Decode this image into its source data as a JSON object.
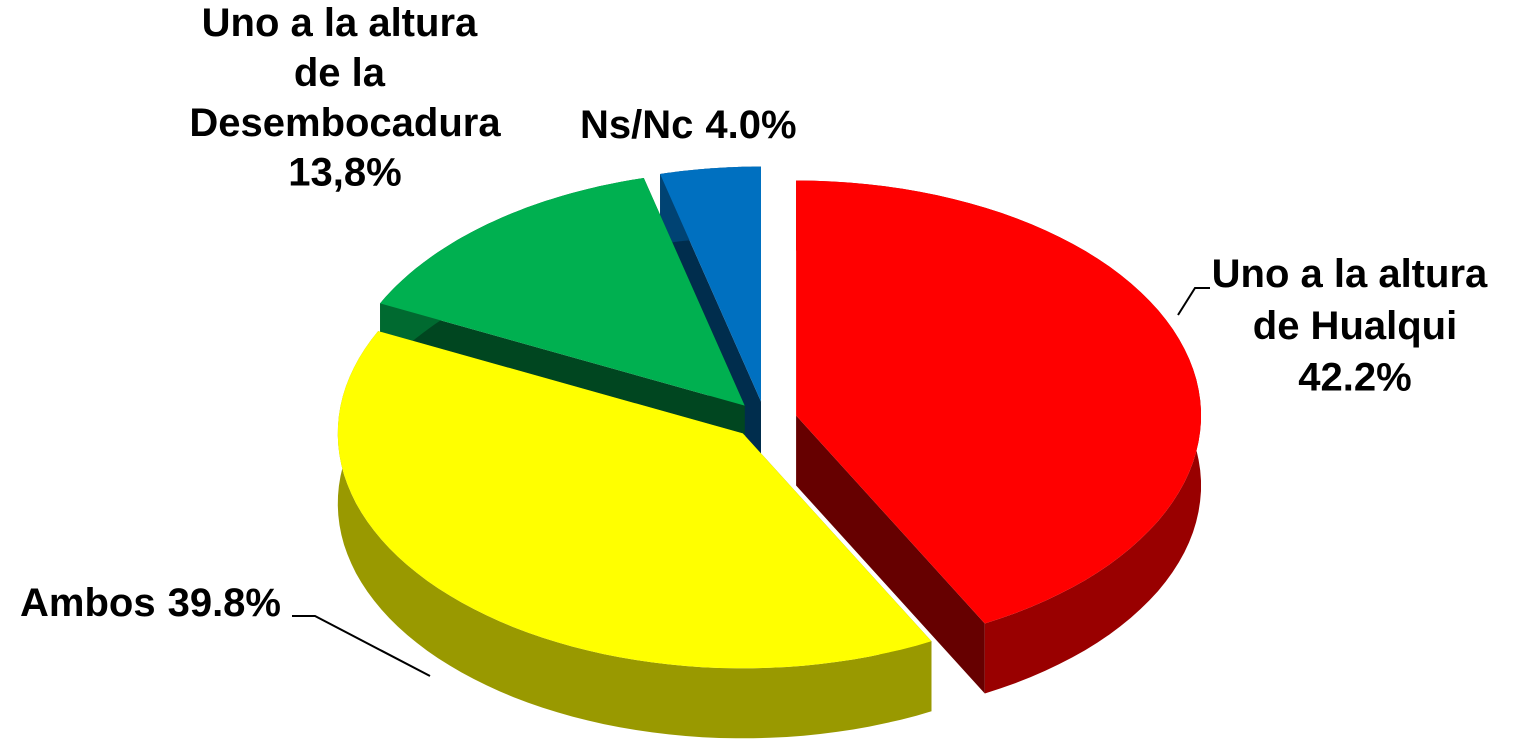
{
  "chart_data": {
    "type": "pie",
    "categories": [
      "Uno a la altura de Hualqui",
      "Ambos",
      "Uno a la altura de la Desembocadura",
      "Ns/Nc"
    ],
    "values": [
      42.2,
      39.8,
      13.8,
      4.0
    ],
    "value_labels": [
      "42.2%",
      "39.8%",
      "13,8%",
      "4.0%"
    ],
    "colors": [
      "#ff0000",
      "#ffff00",
      "#00b050",
      "#0070c0"
    ],
    "three_d": true,
    "exploded": true
  }
}
